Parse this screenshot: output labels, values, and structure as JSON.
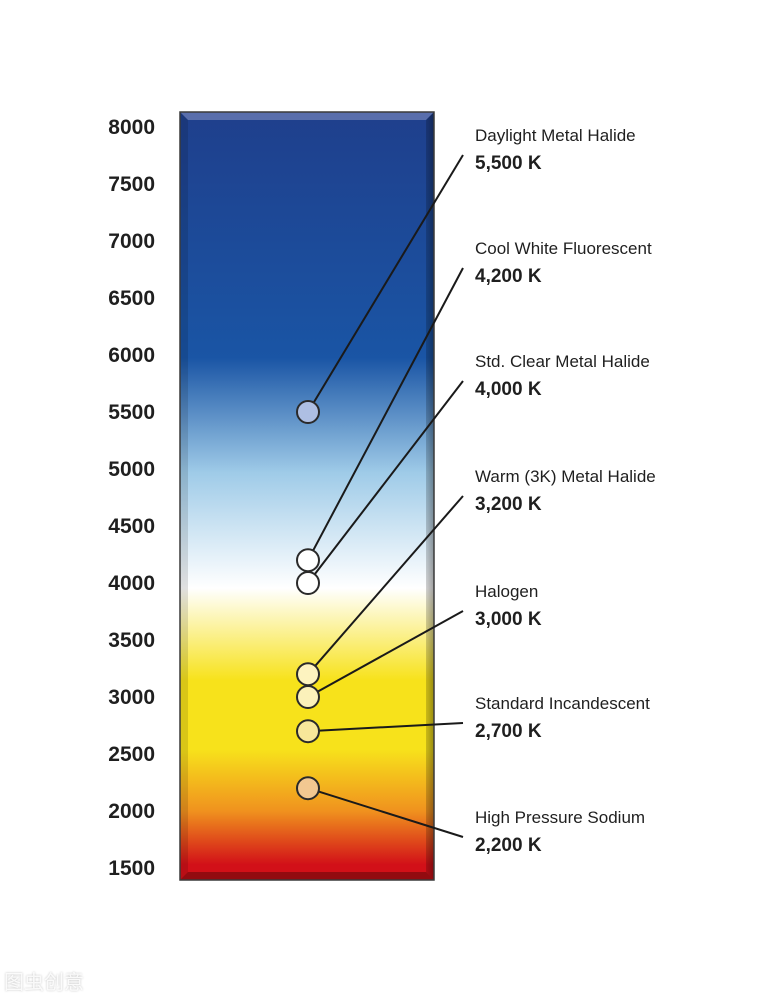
{
  "scale": {
    "labels": [
      "8000",
      "7500",
      "7000",
      "6500",
      "6000",
      "5500",
      "5000",
      "4500",
      "4000",
      "3500",
      "3000",
      "2500",
      "2000",
      "1500"
    ],
    "min": 1500,
    "max": 8000
  },
  "gradient_colors": {
    "top": "#1f3f8c",
    "upper_blue": "#1a55a5",
    "light_blue": "#9fcbe8",
    "white": "#ffffff",
    "yellow": "#f7e21b",
    "orange": "#f0921e",
    "red": "#d21018"
  },
  "sources": [
    {
      "name": "Daylight Metal Halide",
      "temp_label": "5,500 K",
      "kelvin": 5500,
      "marker_color": "#aebfe3"
    },
    {
      "name": "Cool White Fluorescent",
      "temp_label": "4,200 K",
      "kelvin": 4200,
      "marker_color": "#ffffff"
    },
    {
      "name": "Std. Clear Metal Halide",
      "temp_label": "4,000 K",
      "kelvin": 4000,
      "marker_color": "#ffffff"
    },
    {
      "name": "Warm (3K) Metal Halide",
      "temp_label": "3,200 K",
      "kelvin": 3200,
      "marker_color": "#fdf3c0"
    },
    {
      "name": "Halogen",
      "temp_label": "3,000 K",
      "kelvin": 3000,
      "marker_color": "#fbf1ba"
    },
    {
      "name": "Standard Incandescent",
      "temp_label": "2,700 K",
      "kelvin": 2700,
      "marker_color": "#f8e79a"
    },
    {
      "name": "High Pressure Sodium",
      "temp_label": "2,200 K",
      "kelvin": 2200,
      "marker_color": "#f2c891"
    }
  ],
  "watermark": "图虫创意"
}
